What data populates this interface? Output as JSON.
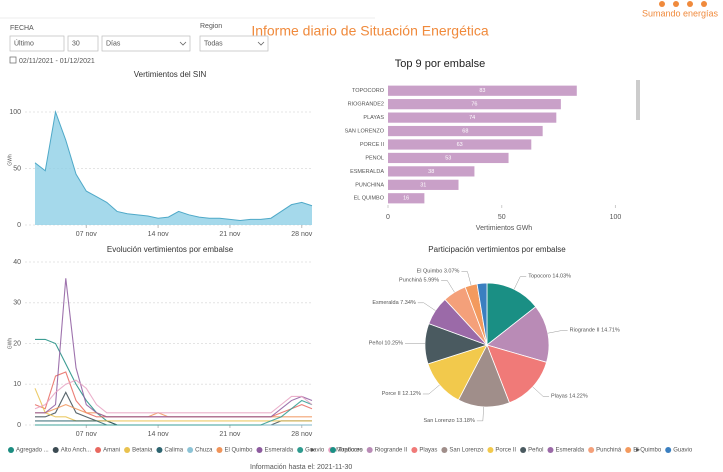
{
  "header": {
    "title": "Informe diario de Situación Energética",
    "brand": "Sumando energías"
  },
  "filters": {
    "fecha_label": "FECHA",
    "mode": "Último",
    "count": "30",
    "unit": "Días",
    "range": "02/11/2021 - 01/12/2021",
    "region_label": "Region",
    "region": "Todas"
  },
  "footer": {
    "label": "Información hasta el:",
    "date": "2021-11-30"
  },
  "chart_data": [
    {
      "type": "area",
      "title": "Vertimientos del SIN",
      "y_label": "GWh",
      "color": "#8fd0e6",
      "line_color": "#4fa9c8",
      "x": [
        2,
        3,
        4,
        5,
        6,
        7,
        8,
        9,
        10,
        11,
        12,
        13,
        14,
        15,
        16,
        17,
        18,
        19,
        20,
        21,
        22,
        23,
        24,
        25,
        26,
        27,
        28,
        29
      ],
      "values": [
        55,
        48,
        100,
        75,
        45,
        30,
        25,
        20,
        12,
        10,
        9,
        8,
        6,
        7,
        12,
        9,
        7,
        6,
        6,
        5,
        4,
        5,
        5,
        6,
        12,
        18,
        20,
        17
      ],
      "xlim": [
        2,
        29
      ],
      "xticks": [
        {
          "value": 7,
          "label": "07 nov"
        },
        {
          "value": 14,
          "label": "14 nov"
        },
        {
          "value": 21,
          "label": "21 nov"
        },
        {
          "value": 28,
          "label": "28 nov"
        }
      ],
      "ylim": [
        0,
        115
      ],
      "yticks": [
        0,
        50,
        100
      ],
      "grid": true
    },
    {
      "type": "bar",
      "horizontal": true,
      "title": "Top 9 por embalse",
      "x_label": "Vertimientos GWh",
      "color": "#c9a0c8",
      "categories": [
        "TOPOCORO",
        "RIOGRANDE2",
        "PLAYAS",
        "SAN LORENZO",
        "PORCE II",
        "PENOL",
        "ESMERALDA",
        "PUNCHINA",
        "EL QUIMBO"
      ],
      "values": [
        83,
        76,
        74,
        68,
        63,
        53,
        38,
        31,
        16
      ],
      "xlim": [
        0,
        102
      ],
      "xticks": [
        0,
        50,
        100
      ],
      "grid": false
    },
    {
      "type": "line",
      "title": "Evolución vertimientos por embalse",
      "y_label": "GWh",
      "x": [
        2,
        3,
        4,
        5,
        6,
        7,
        8,
        9,
        10,
        11,
        12,
        13,
        14,
        15,
        16,
        17,
        18,
        19,
        20,
        21,
        22,
        23,
        24,
        25,
        26,
        27,
        28,
        29
      ],
      "xlim": [
        2,
        29
      ],
      "xticks": [
        {
          "value": 7,
          "label": "07 nov"
        },
        {
          "value": 14,
          "label": "14 nov"
        },
        {
          "value": 21,
          "label": "21 nov"
        },
        {
          "value": 28,
          "label": "28 nov"
        }
      ],
      "ylim": [
        0,
        40
      ],
      "yticks": [
        0,
        10,
        20,
        30,
        40
      ],
      "grid": true,
      "series": [
        {
          "name": "Agregado ...",
          "color": "#1b8c80",
          "values": [
            21,
            21,
            20,
            15,
            10,
            6,
            3,
            1,
            0,
            0,
            0,
            0,
            0,
            0,
            0,
            0,
            0,
            0,
            0,
            0,
            0,
            0,
            0,
            0,
            0,
            0,
            0,
            0
          ]
        },
        {
          "name": "Alto Anch...",
          "color": "#3b4a52",
          "values": [
            2,
            2,
            3,
            8,
            3,
            2,
            1,
            1,
            0,
            0,
            0,
            0,
            0,
            0,
            0,
            0,
            0,
            0,
            0,
            0,
            0,
            0,
            0,
            0,
            1,
            1,
            1,
            1
          ]
        },
        {
          "name": "Amani",
          "color": "#e8685f",
          "values": [
            5,
            4,
            12,
            13,
            6,
            3,
            2,
            2,
            2,
            2,
            2,
            2,
            2,
            2,
            2,
            2,
            2,
            2,
            2,
            2,
            2,
            2,
            2,
            2,
            3,
            4,
            5,
            4
          ]
        },
        {
          "name": "Betania",
          "color": "#e9c24f",
          "values": [
            9,
            3,
            2,
            2,
            1,
            1,
            1,
            1,
            1,
            1,
            1,
            1,
            1,
            1,
            1,
            1,
            1,
            1,
            1,
            1,
            1,
            1,
            1,
            1,
            1,
            1,
            1,
            1
          ]
        },
        {
          "name": "Calima",
          "color": "#2d6470",
          "values": [
            1,
            1,
            1,
            1,
            1,
            1,
            1,
            0,
            0,
            0,
            0,
            0,
            0,
            0,
            0,
            0,
            0,
            0,
            0,
            0,
            0,
            0,
            0,
            0,
            0,
            0,
            0,
            0
          ]
        },
        {
          "name": "Chuza",
          "color": "#8cc3d6",
          "values": [
            0,
            0,
            0,
            0,
            0,
            0,
            0,
            0,
            0,
            0,
            0,
            0,
            0,
            0,
            0,
            0,
            0,
            0,
            0,
            0,
            0,
            0,
            0,
            0,
            0,
            0,
            0,
            0
          ]
        },
        {
          "name": "El Quimbo",
          "color": "#f0945a",
          "values": [
            3,
            3,
            4,
            5,
            4,
            3,
            3,
            2,
            2,
            2,
            2,
            2,
            3,
            2,
            2,
            2,
            2,
            2,
            2,
            2,
            2,
            2,
            2,
            2,
            2,
            2,
            2,
            2
          ]
        },
        {
          "name": "Esmeralda",
          "color": "#8d5b9f",
          "values": [
            3,
            3,
            5,
            36,
            14,
            5,
            3,
            2,
            2,
            2,
            2,
            2,
            2,
            2,
            2,
            2,
            2,
            2,
            2,
            2,
            2,
            2,
            2,
            2,
            4,
            6,
            7,
            6
          ]
        },
        {
          "name": "Guavio",
          "color": "#2f9b8f",
          "values": [
            0,
            0,
            0,
            0,
            0,
            0,
            0,
            0,
            0,
            0,
            0,
            0,
            0,
            0,
            0,
            0,
            0,
            0,
            0,
            0,
            0,
            0,
            0,
            1,
            2,
            4,
            6,
            5
          ]
        },
        {
          "name": "Miraflores",
          "color": "#e8a2c2",
          "values": [
            4,
            5,
            8,
            10,
            11,
            9,
            5,
            3,
            3,
            3,
            3,
            3,
            3,
            3,
            3,
            3,
            3,
            3,
            3,
            3,
            3,
            3,
            3,
            3,
            5,
            7,
            7,
            5
          ]
        }
      ]
    },
    {
      "type": "pie",
      "title": "Participación vertimientos por embalse",
      "categories": [
        "Topocoro",
        "Riogrande II",
        "Playas",
        "San Lorenzo",
        "Porce II",
        "Peñol",
        "Esmeralda",
        "Punchiná",
        "El Quimbo",
        "Guavio"
      ],
      "values": [
        14.03,
        14.71,
        14.22,
        13.18,
        12.12,
        10.25,
        7.34,
        5.99,
        3.07,
        2.5
      ],
      "value_labels": [
        "14.03%",
        "14.71%",
        "14.22%",
        "13.18%",
        "12.12%",
        "10.25%",
        "7.34%",
        "5.99%",
        "3.07%",
        null
      ],
      "colors": [
        "#1a8f84",
        "#b98bb6",
        "#f07a78",
        "#a08e8a",
        "#f2c94c",
        "#4a5a60",
        "#9b6aa8",
        "#f4a07a",
        "#f39a5e",
        "#3a7fc0"
      ]
    }
  ]
}
